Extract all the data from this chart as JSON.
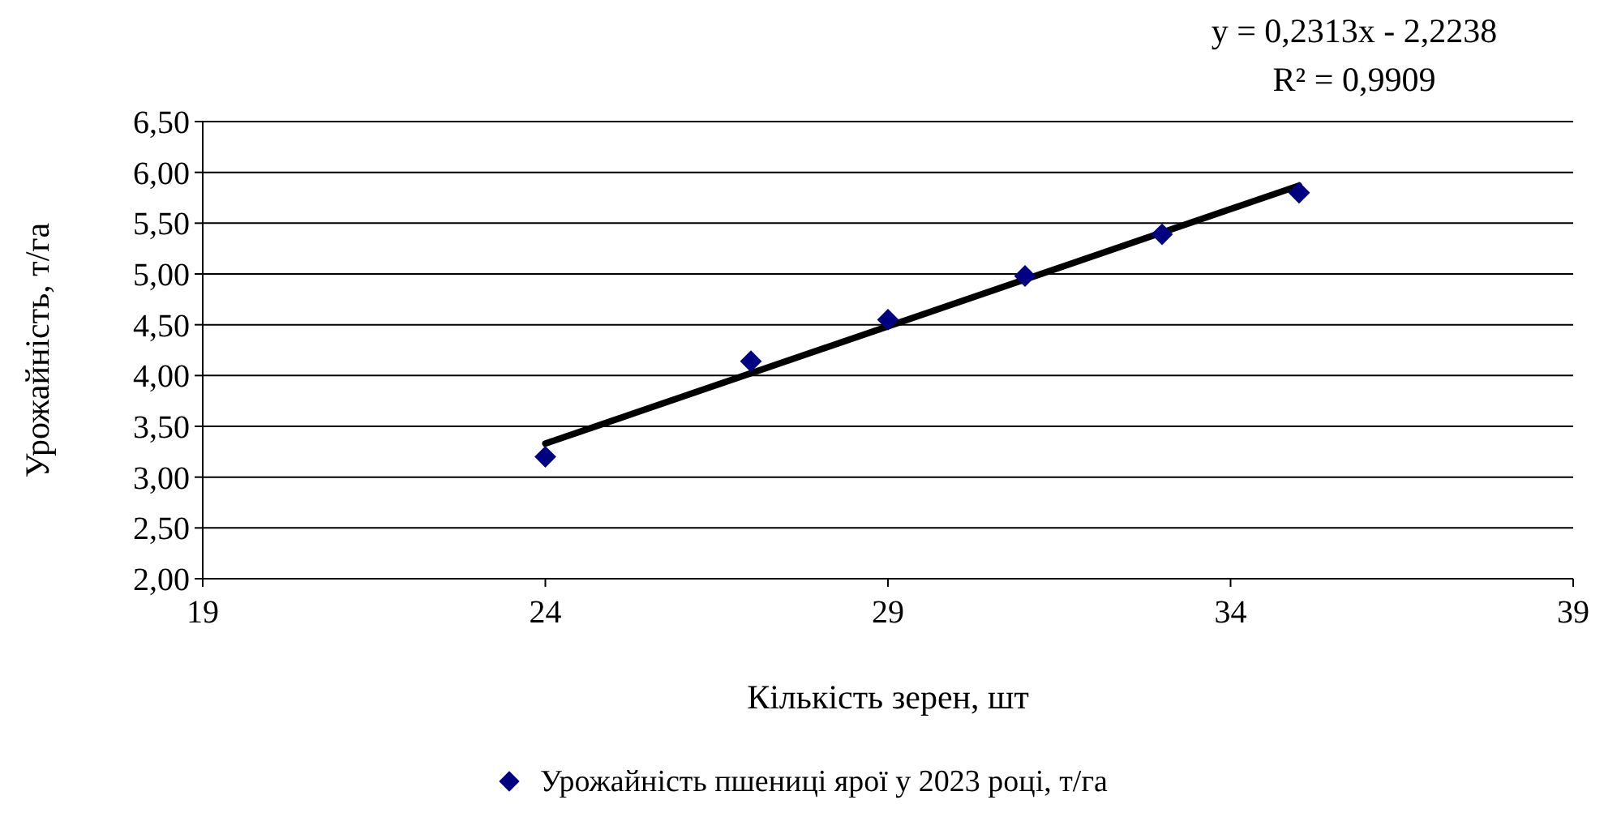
{
  "chart_data": {
    "type": "scatter",
    "xlabel": "Кількість зерен, шт",
    "ylabel": "Урожайність, т/га",
    "annotations": [
      "y = 0,2313x - 2,2238",
      "R² = 0,9909"
    ],
    "x": [
      24,
      27,
      29,
      31,
      33,
      35
    ],
    "series": [
      {
        "name": "Урожайність пшениці ярої у 2023 році, т/га",
        "color": "#000080",
        "values": [
          3.2,
          4.14,
          4.55,
          4.98,
          5.39,
          5.8
        ],
        "marker": "diamond"
      },
      {
        "type": "line",
        "x": [
          24,
          35
        ],
        "color": "#000000",
        "values": [
          3.33,
          5.87
        ],
        "line_style": "solid"
      }
    ],
    "xlim": [
      19,
      39
    ],
    "xticks": [
      19,
      24,
      29,
      34,
      39
    ],
    "ylim": [
      2,
      6.5
    ],
    "yticks": [
      {
        "value": 2,
        "label": "2,00"
      },
      {
        "value": 2.5,
        "label": "2,50"
      },
      {
        "value": 3,
        "label": "3,00"
      },
      {
        "value": 3.5,
        "label": "3,50"
      },
      {
        "value": 4,
        "label": "4,00"
      },
      {
        "value": 4.5,
        "label": "4,50"
      },
      {
        "value": 5,
        "label": "5,00"
      },
      {
        "value": 5.5,
        "label": "5,50"
      },
      {
        "value": 6,
        "label": "6,00"
      },
      {
        "value": 6.5,
        "label": "6,50"
      }
    ],
    "grid": "y",
    "legend": "bottom"
  }
}
